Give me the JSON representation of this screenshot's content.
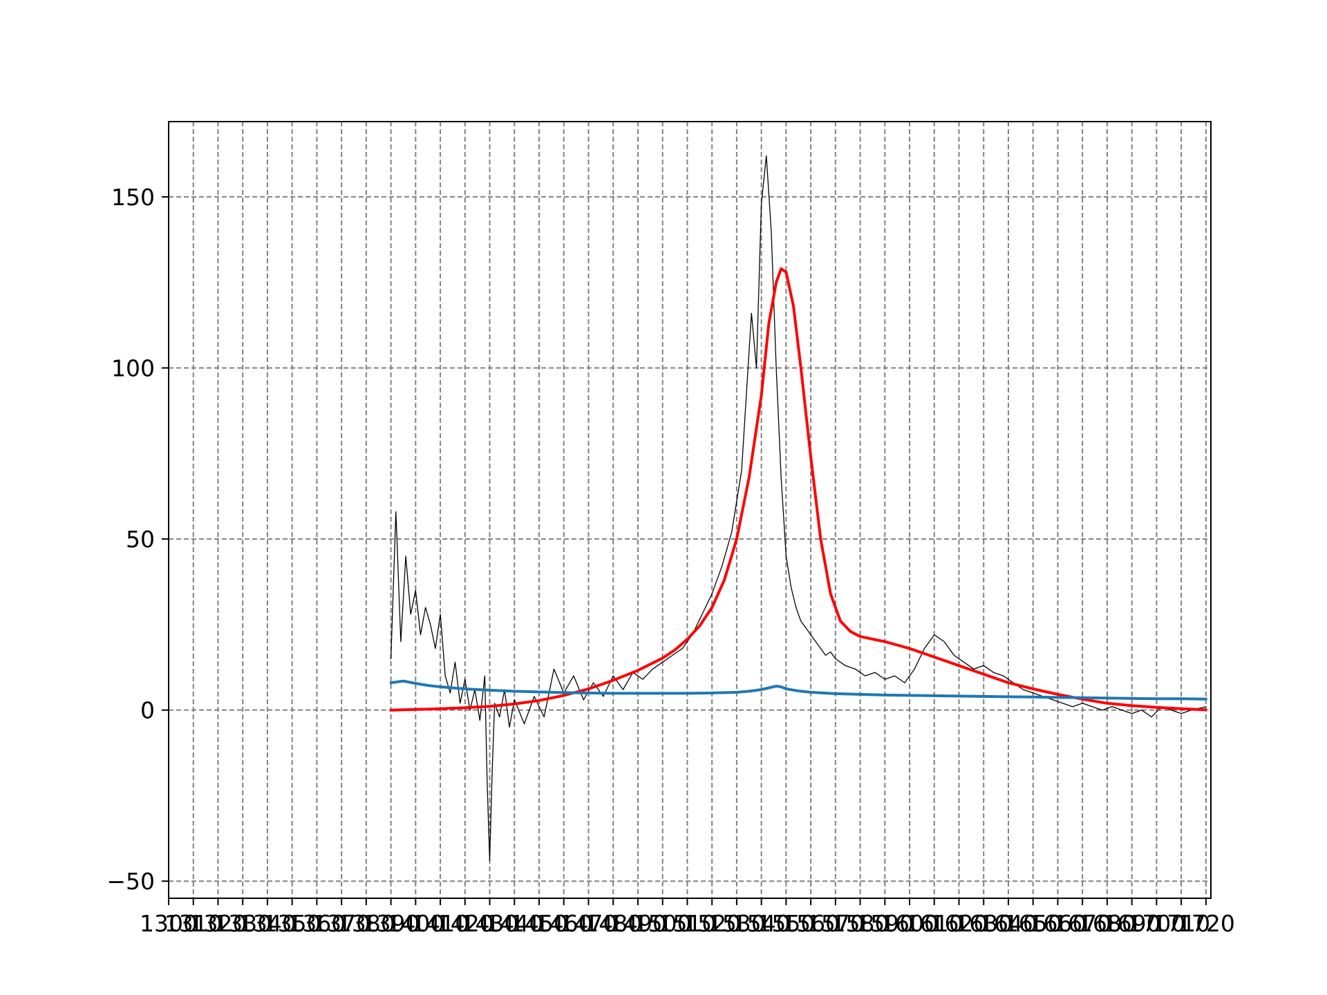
{
  "chart_data": {
    "type": "line",
    "title": "",
    "xlabel": "",
    "ylabel": "",
    "xlim": [
      1300,
      1722
    ],
    "ylim": [
      -55,
      172
    ],
    "grid": true,
    "legend": "none",
    "x_ticks": [
      1300,
      1310,
      1320,
      1330,
      1340,
      1350,
      1360,
      1370,
      1380,
      1390,
      1400,
      1410,
      1420,
      1430,
      1440,
      1450,
      1460,
      1470,
      1480,
      1490,
      1500,
      1510,
      1520,
      1530,
      1540,
      1550,
      1560,
      1570,
      1580,
      1590,
      1600,
      1610,
      1620,
      1630,
      1640,
      1650,
      1660,
      1670,
      1680,
      1690,
      1700,
      1710,
      1720
    ],
    "x_tick_labels": [
      "1300",
      "1310",
      "1320",
      "1330",
      "1340",
      "1350",
      "1360",
      "1370",
      "1380",
      "1390",
      "1400",
      "1410",
      "1420",
      "1430",
      "1440",
      "1450",
      "1460",
      "1470",
      "1480",
      "1490",
      "1500",
      "1510",
      "1520",
      "1530",
      "1540",
      "1550",
      "1560",
      "1570",
      "1580",
      "1590",
      "1600",
      "1610",
      "1620",
      "1630",
      "1640",
      "1650",
      "1660",
      "1670",
      "1680",
      "1690",
      "1700",
      "1710",
      "1720"
    ],
    "y_ticks": [
      -50,
      0,
      50,
      100,
      150
    ],
    "y_tick_labels": [
      "−50",
      "0",
      "50",
      "100",
      "150"
    ],
    "series": [
      {
        "color": "#000000",
        "kind": "raw spectrum",
        "x": [
          1390,
          1392,
          1394,
          1396,
          1398,
          1400,
          1402,
          1404,
          1406,
          1408,
          1410,
          1412,
          1414,
          1416,
          1418,
          1420,
          1422,
          1424,
          1426,
          1428,
          1429,
          1430,
          1431,
          1432,
          1434,
          1436,
          1438,
          1440,
          1444,
          1448,
          1452,
          1456,
          1460,
          1464,
          1468,
          1472,
          1476,
          1480,
          1484,
          1488,
          1492,
          1496,
          1500,
          1504,
          1508,
          1512,
          1516,
          1520,
          1524,
          1528,
          1532,
          1536,
          1538,
          1540,
          1542,
          1544,
          1546,
          1548,
          1550,
          1552,
          1554,
          1556,
          1558,
          1560,
          1562,
          1564,
          1566,
          1568,
          1570,
          1574,
          1578,
          1582,
          1586,
          1590,
          1594,
          1598,
          1602,
          1606,
          1610,
          1614,
          1618,
          1622,
          1626,
          1630,
          1634,
          1638,
          1642,
          1646,
          1650,
          1654,
          1658,
          1662,
          1666,
          1670,
          1674,
          1678,
          1682,
          1686,
          1690,
          1694,
          1698,
          1702,
          1706,
          1710,
          1714,
          1720
        ],
        "y": [
          15,
          58,
          20,
          45,
          28,
          35,
          22,
          30,
          25,
          18,
          28,
          10,
          5,
          14,
          2,
          9,
          0,
          6,
          -3,
          10,
          -22,
          -44,
          -18,
          2,
          -2,
          6,
          -5,
          3,
          -4,
          4,
          -2,
          12,
          5,
          10,
          3,
          8,
          4,
          10,
          6,
          11,
          9,
          12,
          14,
          16,
          18,
          22,
          28,
          34,
          42,
          52,
          70,
          116,
          100,
          148,
          162,
          140,
          100,
          68,
          45,
          36,
          30,
          26,
          24,
          22,
          20,
          18,
          16,
          17,
          15,
          13,
          12,
          10,
          11,
          9,
          10,
          8,
          12,
          18,
          22,
          20,
          16,
          14,
          12,
          13,
          11,
          10,
          8,
          6,
          5,
          4,
          3,
          2,
          1,
          2,
          1,
          0,
          1,
          0,
          -1,
          0,
          -2,
          1,
          0,
          -1,
          0,
          1
        ]
      },
      {
        "color": "#ff0000",
        "kind": "fit",
        "x": [
          1390,
          1400,
          1410,
          1420,
          1430,
          1440,
          1450,
          1460,
          1470,
          1480,
          1490,
          1500,
          1505,
          1510,
          1515,
          1520,
          1525,
          1530,
          1535,
          1540,
          1543,
          1546,
          1548,
          1550,
          1553,
          1556,
          1560,
          1564,
          1568,
          1572,
          1576,
          1580,
          1590,
          1600,
          1610,
          1620,
          1630,
          1640,
          1650,
          1660,
          1670,
          1680,
          1690,
          1700,
          1710,
          1720
        ],
        "y": [
          0,
          0.2,
          0.4,
          0.7,
          1.1,
          1.8,
          2.8,
          4.3,
          6.2,
          8.7,
          11.6,
          15.2,
          17.6,
          20.7,
          24.6,
          30,
          38,
          50,
          68,
          92,
          113,
          125,
          129,
          128,
          118,
          100,
          74,
          50,
          34,
          26,
          23,
          21.5,
          20,
          18,
          15.5,
          13,
          10.5,
          8,
          6.2,
          4.6,
          3.2,
          2,
          1.3,
          0.8,
          0.4,
          0.1
        ]
      },
      {
        "color": "#1f77b4",
        "kind": "baseline",
        "x": [
          1390,
          1395,
          1400,
          1405,
          1410,
          1420,
          1430,
          1440,
          1450,
          1460,
          1470,
          1480,
          1490,
          1500,
          1510,
          1520,
          1530,
          1535,
          1540,
          1543,
          1546,
          1548,
          1550,
          1555,
          1560,
          1570,
          1580,
          1590,
          1600,
          1610,
          1620,
          1630,
          1640,
          1650,
          1660,
          1670,
          1680,
          1690,
          1700,
          1710,
          1720
        ],
        "y": [
          8,
          8.5,
          7.8,
          7.2,
          6.8,
          6.2,
          5.8,
          5.5,
          5.3,
          5.1,
          5,
          4.9,
          4.9,
          4.9,
          4.9,
          5,
          5.2,
          5.5,
          6,
          6.5,
          7,
          6.8,
          6.2,
          5.6,
          5.2,
          4.8,
          4.6,
          4.4,
          4.3,
          4.2,
          4.1,
          4,
          3.9,
          3.8,
          3.7,
          3.6,
          3.5,
          3.4,
          3.3,
          3.3,
          3.2
        ]
      }
    ]
  }
}
